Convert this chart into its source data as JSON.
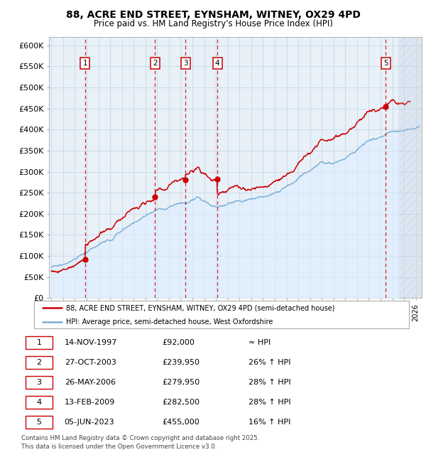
{
  "title1": "88, ACRE END STREET, EYNSHAM, WITNEY, OX29 4PD",
  "title2": "Price paid vs. HM Land Registry's House Price Index (HPI)",
  "yticks": [
    0,
    50000,
    100000,
    150000,
    200000,
    250000,
    300000,
    350000,
    400000,
    450000,
    500000,
    550000,
    600000
  ],
  "ytick_labels": [
    "£0",
    "£50K",
    "£100K",
    "£150K",
    "£200K",
    "£250K",
    "£300K",
    "£350K",
    "£400K",
    "£450K",
    "£500K",
    "£550K",
    "£600K"
  ],
  "xlim_start": 1994.8,
  "xlim_end": 2026.5,
  "ylim_min": 0,
  "ylim_max": 620000,
  "price_paid_color": "#cc0000",
  "hpi_color": "#7aaed4",
  "hpi_fill_color": "#ddeeff",
  "grid_color": "#c8d8e8",
  "background_color": "#e8f0f8",
  "sale_dates_x": [
    1997.87,
    2003.82,
    2006.4,
    2009.12,
    2023.43
  ],
  "sale_prices_y": [
    92000,
    239950,
    279950,
    282500,
    455000
  ],
  "sale_labels": [
    "1",
    "2",
    "3",
    "4",
    "5"
  ],
  "dashed_vline_color": "#cc0000",
  "last_vline_color": "#888888",
  "hatch_start": 2024.5,
  "legend_label_red": "88, ACRE END STREET, EYNSHAM, WITNEY, OX29 4PD (semi-detached house)",
  "legend_label_blue": "HPI: Average price, semi-detached house, West Oxfordshire",
  "table_rows": [
    [
      "1",
      "14-NOV-1997",
      "£92,000",
      "≈ HPI"
    ],
    [
      "2",
      "27-OCT-2003",
      "£239,950",
      "26% ↑ HPI"
    ],
    [
      "3",
      "26-MAY-2006",
      "£279,950",
      "28% ↑ HPI"
    ],
    [
      "4",
      "13-FEB-2009",
      "£282,500",
      "28% ↑ HPI"
    ],
    [
      "5",
      "05-JUN-2023",
      "£455,000",
      "16% ↑ HPI"
    ]
  ],
  "footer": "Contains HM Land Registry data © Crown copyright and database right 2025.\nThis data is licensed under the Open Government Licence v3.0."
}
